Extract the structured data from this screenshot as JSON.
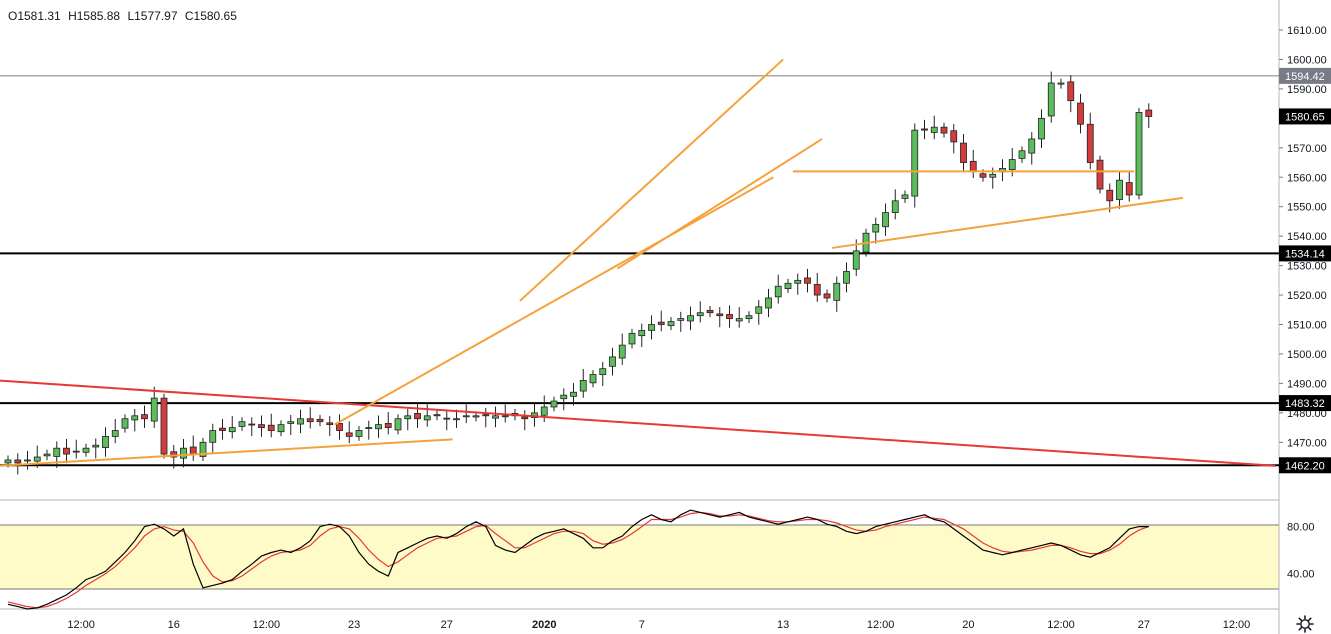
{
  "header": {
    "open_label": "O1581.31",
    "high_label": "H1585.88",
    "low_label": "L1577.97",
    "close_label": "C1580.65"
  },
  "icons": {
    "settings": "gear-icon"
  },
  "colors": {
    "up": "#26a69a",
    "up_candle": "#5cbd5c",
    "down_candle": "#d23c3c",
    "trend_orange": "#f5a23c",
    "trend_red": "#e53935",
    "level": "#000000",
    "stoch_k": "#000000",
    "stoch_d": "#e53935",
    "stoch_band": "#fffbc8"
  },
  "chart_data": [
    {
      "type": "candlestick",
      "title": "",
      "ylim": [
        1452,
        1618
      ],
      "yticks": [
        1470,
        1480,
        1490,
        1500,
        1510,
        1520,
        1530,
        1540,
        1550,
        1560,
        1570,
        1580,
        1590,
        1600,
        1610
      ],
      "price_labels": [
        {
          "value": 1594.42,
          "text": "1594.42",
          "style": "thin"
        },
        {
          "value": 1580.65,
          "text": "1580.65",
          "style": "current"
        },
        {
          "value": 1534.14,
          "text": "1534.14",
          "style": "level"
        },
        {
          "value": 1483.32,
          "text": "1483.32",
          "style": "level"
        },
        {
          "value": 1462.2,
          "text": "1462.20",
          "style": "level"
        }
      ],
      "x_labels": [
        "12:00",
        "16",
        "12:00",
        "23",
        "27",
        "2020",
        "7",
        "13",
        "12:00",
        "20",
        "12:00",
        "27",
        "12:00"
      ],
      "x_label_bars": [
        7.5,
        17,
        26.5,
        35.5,
        45,
        55,
        65,
        79.5,
        89.5,
        98.5,
        108,
        116.5,
        126
      ],
      "bar_count": 118,
      "close": [
        1464,
        1463,
        1464,
        1465,
        1466,
        1468,
        1466,
        1467,
        1468,
        1469,
        1472,
        1474,
        1478,
        1479,
        1478,
        1485,
        1466,
        1465,
        1468,
        1466,
        1470,
        1474,
        1474,
        1475,
        1477,
        1476,
        1475,
        1474,
        1476,
        1477,
        1478,
        1477,
        1477,
        1476,
        1474,
        1472,
        1474,
        1475,
        1476,
        1475,
        1478,
        1479,
        1478,
        1479,
        1479,
        1478,
        1478,
        1479,
        1479,
        1479,
        1479,
        1479,
        1479,
        1478,
        1480,
        1482,
        1484,
        1486,
        1487,
        1491,
        1493,
        1495,
        1499,
        1503,
        1507,
        1508,
        1510,
        1510,
        1511,
        1512,
        1513,
        1514,
        1514,
        1513,
        1512,
        1512,
        1513,
        1516,
        1519,
        1523,
        1524,
        1525,
        1524,
        1520,
        1519,
        1524,
        1528,
        1535,
        1541,
        1544,
        1548,
        1552,
        1554,
        1576,
        1576,
        1577,
        1575,
        1572,
        1565,
        1562,
        1560,
        1561,
        1563,
        1566,
        1569,
        1573,
        1580,
        1592,
        1592,
        1586,
        1578,
        1565,
        1556,
        1552,
        1559,
        1554,
        1582,
        1580.65
      ],
      "stoch_ylim": [
        10,
        100
      ],
      "stoch_band": [
        20,
        80
      ],
      "stoch_ticks": [
        40,
        80
      ],
      "stoch_k": [
        14,
        12,
        10,
        11,
        14,
        18,
        22,
        28,
        35,
        38,
        42,
        50,
        58,
        68,
        80,
        82,
        78,
        72,
        78,
        48,
        28,
        30,
        32,
        35,
        42,
        48,
        55,
        58,
        60,
        58,
        62,
        68,
        80,
        82,
        80,
        72,
        58,
        48,
        42,
        38,
        58,
        62,
        66,
        70,
        72,
        70,
        74,
        80,
        84,
        80,
        64,
        60,
        58,
        64,
        70,
        74,
        76,
        78,
        74,
        70,
        62,
        62,
        68,
        72,
        80,
        86,
        90,
        86,
        84,
        90,
        94,
        92,
        90,
        88,
        90,
        92,
        88,
        86,
        84,
        82,
        84,
        86,
        88,
        86,
        82,
        80,
        76,
        74,
        76,
        80,
        82,
        84,
        86,
        88,
        90,
        86,
        84,
        78,
        72,
        66,
        60,
        58,
        56,
        58,
        60,
        62,
        64,
        66,
        64,
        60,
        56,
        54,
        58,
        62,
        70,
        78,
        80,
        80
      ],
      "stoch_d": [
        16,
        14,
        12,
        11,
        12,
        15,
        19,
        24,
        30,
        35,
        40,
        46,
        54,
        62,
        72,
        78,
        80,
        77,
        76,
        66,
        50,
        38,
        33,
        34,
        38,
        44,
        50,
        55,
        58,
        59,
        60,
        64,
        72,
        78,
        80,
        78,
        70,
        60,
        52,
        46,
        50,
        56,
        62,
        66,
        70,
        71,
        72,
        76,
        80,
        81,
        74,
        68,
        62,
        62,
        66,
        70,
        74,
        76,
        76,
        74,
        68,
        65,
        66,
        69,
        74,
        80,
        86,
        86,
        86,
        88,
        91,
        92,
        91,
        89,
        89,
        90,
        89,
        87,
        85,
        84,
        84,
        85,
        86,
        86,
        85,
        83,
        80,
        77,
        76,
        77,
        80,
        82,
        84,
        86,
        88,
        87,
        86,
        82,
        78,
        72,
        66,
        62,
        59,
        58,
        59,
        60,
        62,
        64,
        64,
        62,
        59,
        57,
        57,
        60,
        65,
        72,
        77,
        80
      ]
    }
  ]
}
